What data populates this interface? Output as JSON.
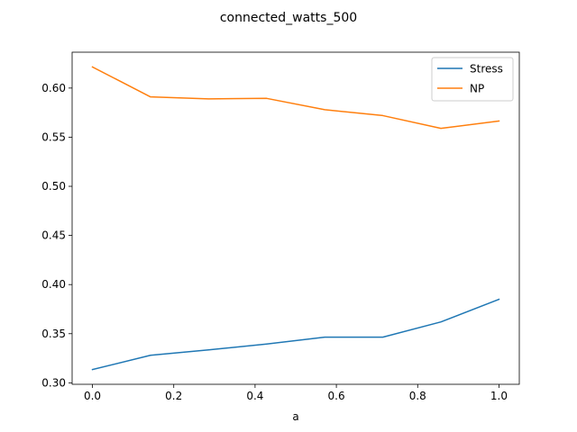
{
  "chart_data": {
    "type": "line",
    "title": "connected_watts_500",
    "xlabel": "a",
    "ylabel": "",
    "x": [
      0.0,
      0.142857,
      0.285714,
      0.428571,
      0.571429,
      0.714286,
      0.857143,
      1.0
    ],
    "xlim": [
      -0.05,
      1.05
    ],
    "ylim": [
      0.2985,
      0.6365
    ],
    "xticks": [
      0.0,
      0.2,
      0.4,
      0.6,
      0.8,
      1.0
    ],
    "xtick_labels": [
      "0.0",
      "0.2",
      "0.4",
      "0.6",
      "0.8",
      "1.0"
    ],
    "yticks": [
      0.3,
      0.35,
      0.4,
      0.45,
      0.5,
      0.55,
      0.6
    ],
    "ytick_labels": [
      "0.30",
      "0.35",
      "0.40",
      "0.45",
      "0.50",
      "0.55",
      "0.60"
    ],
    "grid": false,
    "legend_position": "top-right",
    "series": [
      {
        "name": "Stress",
        "color": "#1f77b4",
        "values": [
          0.3135,
          0.328,
          0.3335,
          0.3395,
          0.3465,
          0.3465,
          0.362,
          0.385
        ]
      },
      {
        "name": "NP",
        "color": "#ff7f0e",
        "values": [
          0.6215,
          0.591,
          0.589,
          0.5895,
          0.578,
          0.572,
          0.559,
          0.5665
        ]
      }
    ]
  }
}
